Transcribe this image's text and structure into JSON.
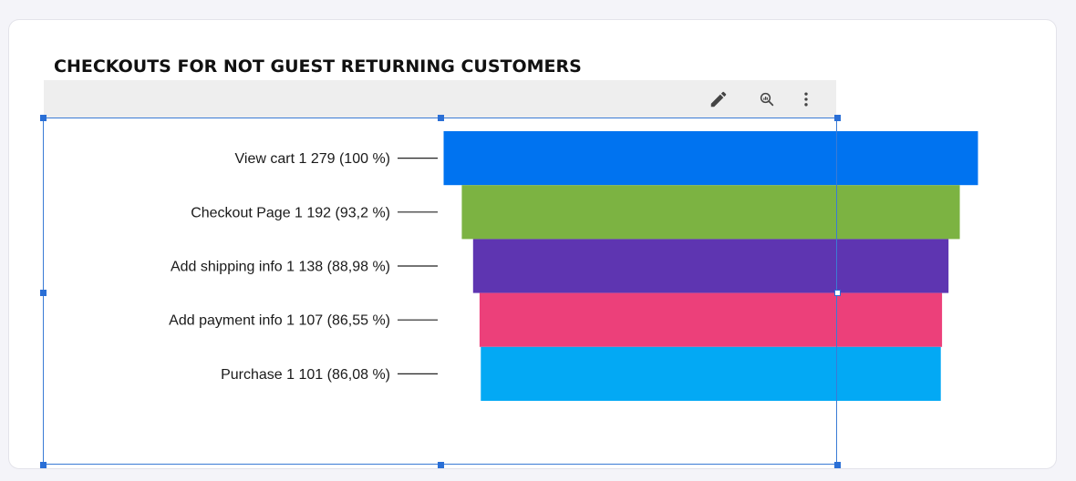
{
  "title": "CHECKOUTS FOR NOT GUEST RETURNING CUSTOMERS",
  "toolbar": {
    "icons": [
      "edit-pencil-icon",
      "analytics-search-icon",
      "more-vert-icon"
    ]
  },
  "chart_data": {
    "type": "funnel",
    "title": "CHECKOUTS FOR NOT GUEST RETURNING CUSTOMERS",
    "stages": [
      {
        "name": "View cart",
        "value": 1279,
        "percent": 100,
        "label": "View cart 1 279 (100 %)",
        "color": "#0073f0"
      },
      {
        "name": "Checkout Page",
        "value": 1192,
        "percent": 93.2,
        "label": "Checkout Page 1 192 (93,2 %)",
        "color": "#7cb342"
      },
      {
        "name": "Add shipping info",
        "value": 1138,
        "percent": 88.98,
        "label": "Add shipping info 1 138 (88,98 %)",
        "color": "#5e35b1"
      },
      {
        "name": "Add payment info",
        "value": 1107,
        "percent": 86.55,
        "label": "Add payment info 1 107 (86,55 %)",
        "color": "#ec407a"
      },
      {
        "name": "Purchase",
        "value": 1101,
        "percent": 86.08,
        "label": "Purchase 1 101 (86,08 %)",
        "color": "#03a9f4"
      }
    ]
  }
}
